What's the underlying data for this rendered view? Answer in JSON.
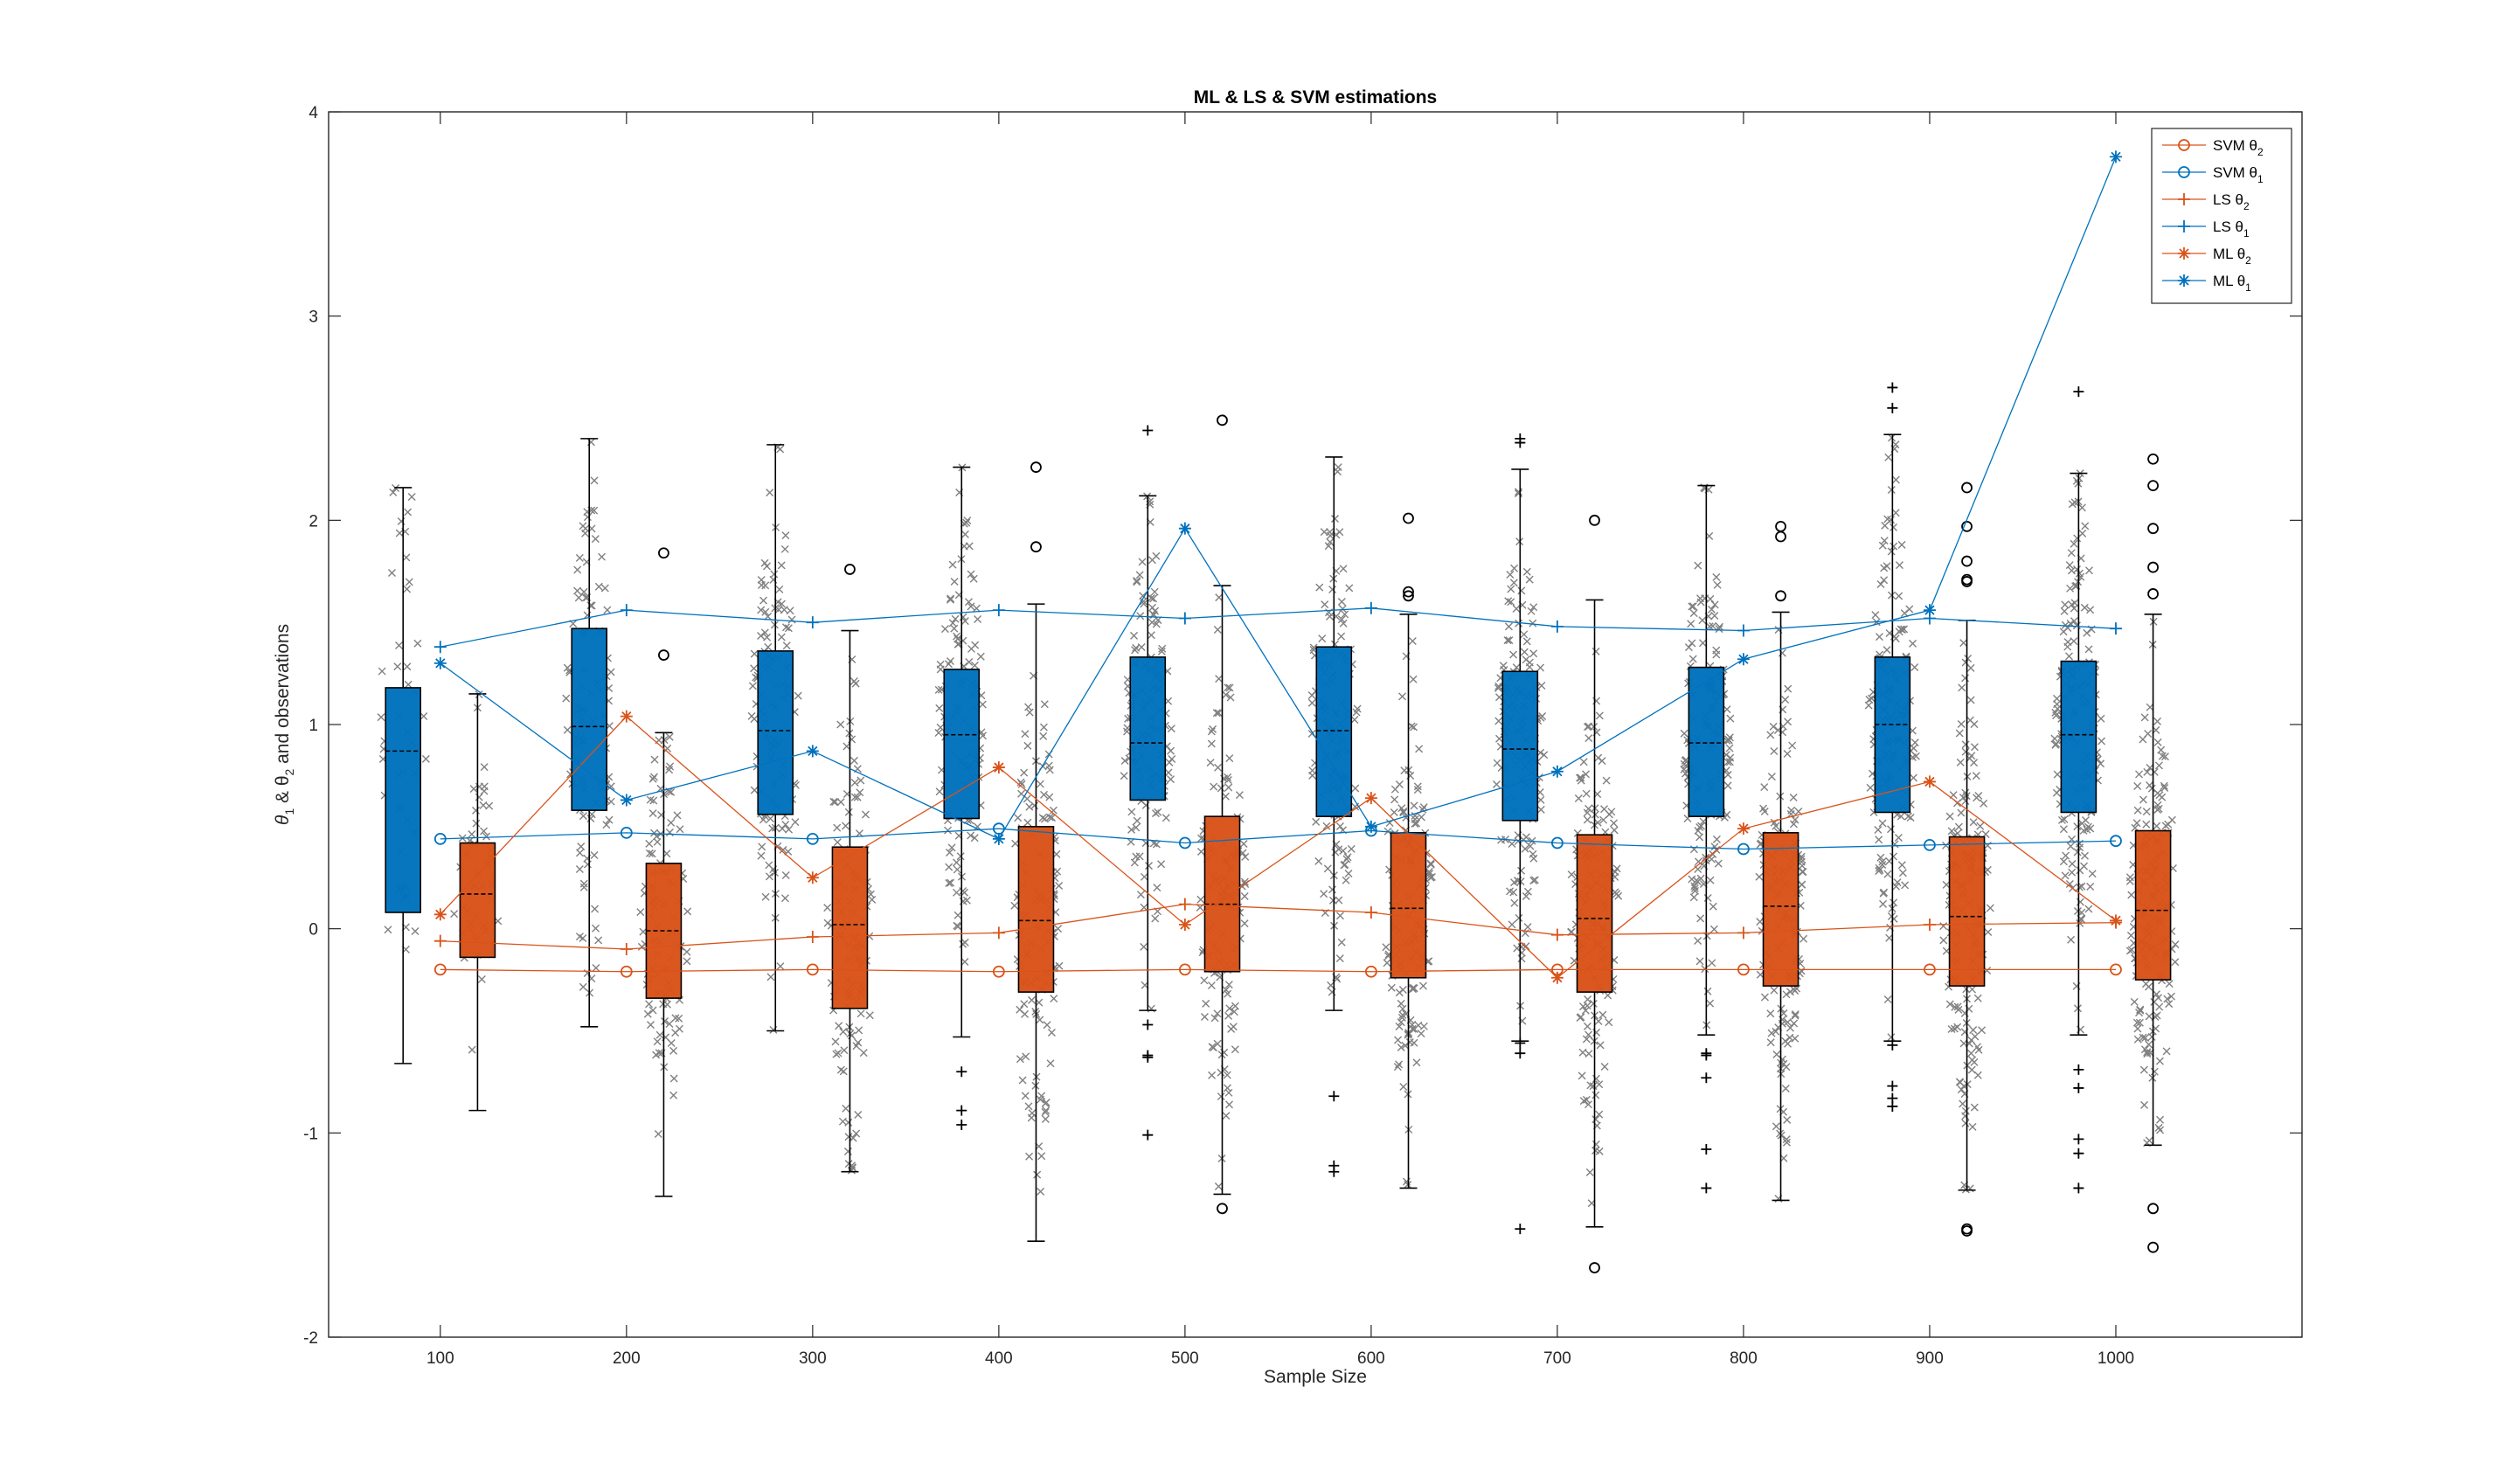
{
  "chart_data": {
    "type": "box",
    "title": "ML & LS & SVM estimations",
    "xlabel": "Sample Size",
    "ylabel": {
      "pre": "θ",
      "sub1": "1",
      "mid": " & θ",
      "sub2": "2",
      "post": " and observations"
    },
    "xlim": [
      40,
      1100
    ],
    "ylim": [
      -2,
      4
    ],
    "x_ticks": [
      100,
      200,
      300,
      400,
      500,
      600,
      700,
      800,
      900,
      1000
    ],
    "y_ticks": [
      -2,
      -1,
      0,
      1,
      2,
      3,
      4
    ],
    "x_tick_labels": [
      "100",
      "200",
      "300",
      "400",
      "500",
      "600",
      "700",
      "800",
      "900",
      "1000"
    ],
    "y_tick_labels": [
      "-2",
      "-1",
      "0",
      "1",
      "2",
      "3",
      "4"
    ],
    "colors": {
      "theta1": "#0072BD",
      "theta2": "#D95319",
      "observation": "#808080",
      "axis": "#262626"
    },
    "boxes": {
      "theta1": [
        {
          "x": 80,
          "q1": 0.08,
          "median": 0.87,
          "q3": 1.18,
          "low": -0.66,
          "high": 2.16,
          "out_plus": [],
          "out_circle": []
        },
        {
          "x": 180,
          "q1": 0.58,
          "median": 0.99,
          "q3": 1.47,
          "low": -0.48,
          "high": 2.4,
          "out_plus": [],
          "out_circle": []
        },
        {
          "x": 280,
          "q1": 0.56,
          "median": 0.97,
          "q3": 1.36,
          "low": -0.5,
          "high": 2.37,
          "out_plus": [],
          "out_circle": []
        },
        {
          "x": 380,
          "q1": 0.54,
          "median": 0.95,
          "q3": 1.27,
          "low": -0.53,
          "high": 2.26,
          "out_plus": [
            -0.7,
            -0.89,
            -0.96
          ],
          "out_circle": []
        },
        {
          "x": 480,
          "q1": 0.63,
          "median": 0.91,
          "q3": 1.33,
          "low": -0.4,
          "high": 2.12,
          "out_plus": [
            2.44,
            -0.47,
            -0.62,
            -0.63,
            -1.01
          ],
          "out_circle": []
        },
        {
          "x": 580,
          "q1": 0.55,
          "median": 0.97,
          "q3": 1.38,
          "low": -0.4,
          "high": 2.31,
          "out_plus": [
            -0.82,
            -1.16,
            -1.19
          ],
          "out_circle": []
        },
        {
          "x": 680,
          "q1": 0.53,
          "median": 0.88,
          "q3": 1.26,
          "low": -0.55,
          "high": 2.25,
          "out_plus": [
            2.4,
            2.38,
            -0.56,
            -0.61,
            -1.47
          ],
          "out_circle": []
        },
        {
          "x": 780,
          "q1": 0.55,
          "median": 0.91,
          "q3": 1.28,
          "low": -0.52,
          "high": 2.17,
          "out_plus": [
            -0.61,
            -0.62,
            -0.73,
            -1.08,
            -1.27
          ],
          "out_circle": []
        },
        {
          "x": 880,
          "q1": 0.57,
          "median": 1.0,
          "q3": 1.33,
          "low": -0.55,
          "high": 2.42,
          "out_plus": [
            2.65,
            2.55,
            -0.57,
            -0.77,
            -0.83,
            -0.87
          ],
          "out_circle": []
        },
        {
          "x": 980,
          "q1": 0.57,
          "median": 0.95,
          "q3": 1.31,
          "low": -0.52,
          "high": 2.23,
          "out_plus": [
            2.63,
            -0.69,
            -0.78,
            -1.03,
            -1.1,
            -1.27
          ],
          "out_circle": []
        }
      ],
      "theta2": [
        {
          "x": 120,
          "q1": -0.14,
          "median": 0.17,
          "q3": 0.42,
          "low": -0.89,
          "high": 1.15,
          "out_plus": [],
          "out_circle": []
        },
        {
          "x": 220,
          "q1": -0.34,
          "median": -0.01,
          "q3": 0.32,
          "low": -1.31,
          "high": 0.96,
          "out_plus": [],
          "out_circle": [
            1.84,
            1.34
          ]
        },
        {
          "x": 320,
          "q1": -0.39,
          "median": 0.02,
          "q3": 0.4,
          "low": -1.19,
          "high": 1.46,
          "out_plus": [],
          "out_circle": [
            1.76
          ]
        },
        {
          "x": 420,
          "q1": -0.31,
          "median": 0.04,
          "q3": 0.5,
          "low": -1.53,
          "high": 1.59,
          "out_plus": [],
          "out_circle": [
            2.26,
            1.87
          ]
        },
        {
          "x": 520,
          "q1": -0.21,
          "median": 0.12,
          "q3": 0.55,
          "low": -1.3,
          "high": 1.68,
          "out_plus": [],
          "out_circle": [
            2.49,
            -1.37
          ]
        },
        {
          "x": 620,
          "q1": -0.24,
          "median": 0.1,
          "q3": 0.47,
          "low": -1.27,
          "high": 1.54,
          "out_plus": [],
          "out_circle": [
            2.01,
            1.65,
            1.63
          ]
        },
        {
          "x": 720,
          "q1": -0.31,
          "median": 0.05,
          "q3": 0.46,
          "low": -1.46,
          "high": 1.61,
          "out_plus": [],
          "out_circle": [
            2.0,
            -1.66
          ]
        },
        {
          "x": 820,
          "q1": -0.28,
          "median": 0.11,
          "q3": 0.47,
          "low": -1.33,
          "high": 1.55,
          "out_plus": [],
          "out_circle": [
            1.97,
            1.92,
            1.63
          ]
        },
        {
          "x": 920,
          "q1": -0.28,
          "median": 0.06,
          "q3": 0.45,
          "low": -1.28,
          "high": 1.51,
          "out_plus": [],
          "out_circle": [
            2.16,
            1.97,
            1.8,
            1.71,
            1.7,
            -1.47,
            -1.48
          ]
        },
        {
          "x": 1020,
          "q1": -0.25,
          "median": 0.09,
          "q3": 0.48,
          "low": -1.06,
          "high": 1.54,
          "out_plus": [],
          "out_circle": [
            2.3,
            2.17,
            1.96,
            1.77,
            1.64,
            -1.37,
            -1.56
          ]
        }
      ]
    },
    "series": [
      {
        "name": "SVM θ2",
        "label": "SVM θ",
        "sub": "2",
        "marker": "circle",
        "color": "#D95319",
        "x": [
          100,
          200,
          300,
          400,
          500,
          600,
          700,
          800,
          900,
          1000
        ],
        "y": [
          -0.2,
          -0.21,
          -0.2,
          -0.21,
          -0.2,
          -0.21,
          -0.2,
          -0.2,
          -0.2,
          -0.2
        ]
      },
      {
        "name": "SVM θ1",
        "label": "SVM θ",
        "sub": "1",
        "marker": "circle",
        "color": "#0072BD",
        "x": [
          100,
          200,
          300,
          400,
          500,
          600,
          700,
          800,
          900,
          1000
        ],
        "y": [
          0.44,
          0.47,
          0.44,
          0.49,
          0.42,
          0.48,
          0.42,
          0.39,
          0.41,
          0.43
        ]
      },
      {
        "name": "LS θ2",
        "label": "LS θ",
        "sub": "2",
        "marker": "plus",
        "color": "#D95319",
        "x": [
          100,
          200,
          300,
          400,
          500,
          600,
          700,
          800,
          900,
          1000
        ],
        "y": [
          -0.06,
          -0.1,
          -0.04,
          -0.02,
          0.12,
          0.08,
          -0.03,
          -0.02,
          0.02,
          0.03
        ]
      },
      {
        "name": "LS θ1",
        "label": "LS θ",
        "sub": "1",
        "marker": "plus",
        "color": "#0072BD",
        "x": [
          100,
          200,
          300,
          400,
          500,
          600,
          700,
          800,
          900,
          1000
        ],
        "y": [
          1.38,
          1.56,
          1.5,
          1.56,
          1.52,
          1.57,
          1.48,
          1.46,
          1.52,
          1.47
        ]
      },
      {
        "name": "ML θ2",
        "label": "ML θ",
        "sub": "2",
        "marker": "star",
        "color": "#D95319",
        "x": [
          100,
          200,
          300,
          400,
          500,
          600,
          700,
          800,
          900,
          1000
        ],
        "y": [
          0.07,
          1.04,
          0.25,
          0.79,
          0.02,
          0.64,
          -0.24,
          0.49,
          0.72,
          0.04
        ]
      },
      {
        "name": "ML θ1",
        "label": "ML θ",
        "sub": "1",
        "marker": "star",
        "color": "#0072BD",
        "x": [
          100,
          200,
          300,
          400,
          500,
          600,
          700,
          800,
          900,
          1000
        ],
        "y": [
          1.3,
          0.63,
          0.87,
          0.44,
          1.96,
          0.5,
          0.77,
          1.32,
          1.56,
          3.78
        ]
      }
    ],
    "legend_position": "top-right",
    "observations": "gray x markers jittered around each box"
  }
}
